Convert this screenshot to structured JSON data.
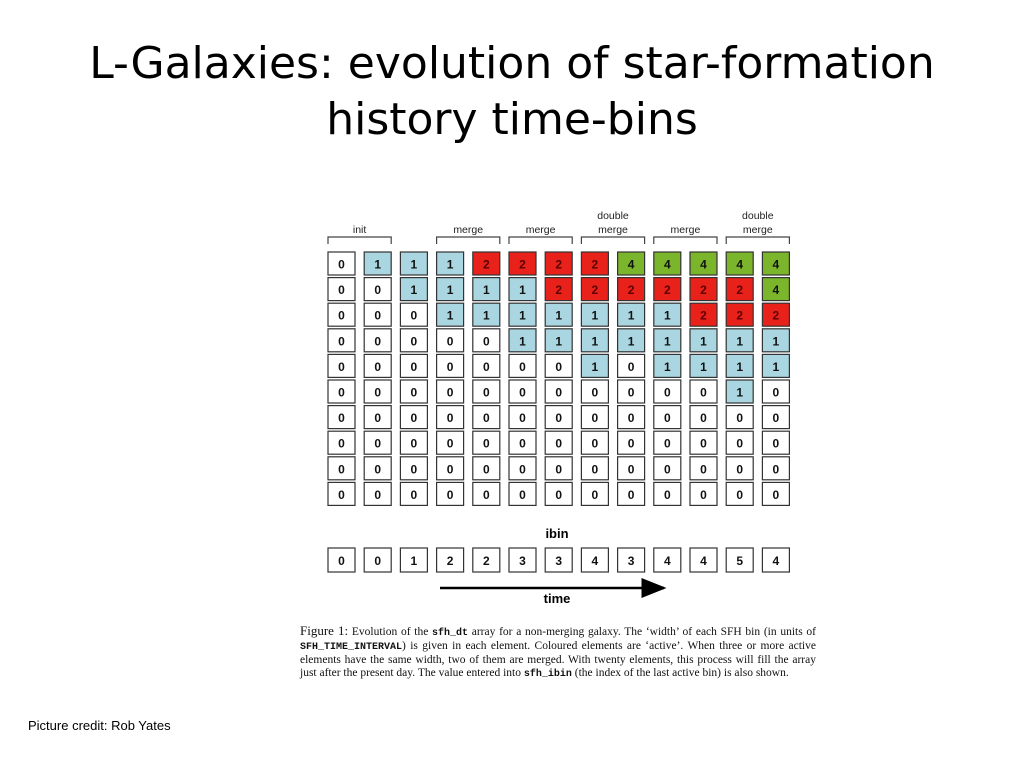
{
  "title": {
    "line1": "L-Galaxies: evolution of star-formation",
    "line2": "history time-bins"
  },
  "figure": {
    "columns": [
      [
        0,
        0,
        0,
        0,
        0,
        0,
        0,
        0,
        0,
        0
      ],
      [
        1,
        0,
        0,
        0,
        0,
        0,
        0,
        0,
        0,
        0
      ],
      [
        1,
        1,
        0,
        0,
        0,
        0,
        0,
        0,
        0,
        0
      ],
      [
        1,
        1,
        1,
        0,
        0,
        0,
        0,
        0,
        0,
        0
      ],
      [
        2,
        1,
        1,
        0,
        0,
        0,
        0,
        0,
        0,
        0
      ],
      [
        2,
        1,
        1,
        1,
        0,
        0,
        0,
        0,
        0,
        0
      ],
      [
        2,
        2,
        1,
        1,
        0,
        0,
        0,
        0,
        0,
        0
      ],
      [
        2,
        2,
        1,
        1,
        1,
        0,
        0,
        0,
        0,
        0
      ],
      [
        4,
        2,
        1,
        1,
        0,
        0,
        0,
        0,
        0,
        0
      ],
      [
        4,
        2,
        1,
        1,
        1,
        0,
        0,
        0,
        0,
        0
      ],
      [
        4,
        2,
        2,
        1,
        1,
        0,
        0,
        0,
        0,
        0
      ],
      [
        4,
        2,
        2,
        1,
        1,
        1,
        0,
        0,
        0,
        0
      ],
      [
        4,
        4,
        2,
        1,
        1,
        0,
        0,
        0,
        0,
        0
      ]
    ],
    "ibin_values": [
      0,
      0,
      1,
      2,
      2,
      3,
      3,
      4,
      3,
      4,
      4,
      5,
      4
    ],
    "ibin_label": "ibin",
    "time_label": "time",
    "brackets": [
      {
        "label": "init",
        "from": 0,
        "to": 1
      },
      {
        "label": "merge",
        "from": 3,
        "to": 4
      },
      {
        "label": "merge",
        "from": 5,
        "to": 6
      },
      {
        "label": "double merge",
        "from": 7,
        "to": 8
      },
      {
        "label": "merge",
        "from": 9,
        "to": 10
      },
      {
        "label": "double merge",
        "from": 11,
        "to": 12
      }
    ],
    "colors": {
      "width1": "#a9d6e0",
      "width2": "#e8211b",
      "width4": "#7bb52b",
      "empty": "#ffffff",
      "border": "#333333"
    }
  },
  "caption": {
    "label": "Figure 1:",
    "t1": " Evolution of the ",
    "c1": "sfh_dt",
    "t2": " array for a non-merging galaxy. The ‘width’ of each SFH bin (in units of ",
    "c2": "SFH_TIME_INTERVAL",
    "t3": ") is given in each element. Coloured elements are ‘active’. When three or more active elements have the same width, two of them are merged. With twenty elements, this process will fill the array just after the present day. The value entered into ",
    "c3": "sfh_ibin",
    "t4": " (the index of the last active bin) is also shown."
  },
  "credit": "Picture credit: Rob Yates"
}
